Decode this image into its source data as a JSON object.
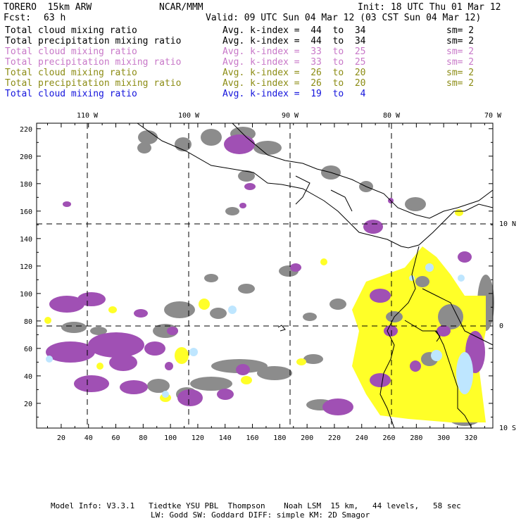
{
  "header": {
    "model": "TORERO  15km ARW",
    "center": "NCAR/MMM",
    "init": "Init: 18 UTC Thu 01 Mar 12",
    "fcst_label": "Fcst:",
    "fcst_value": "63 h",
    "valid": "Valid: 09 UTC Sun 04 Mar 12 (03 CST Sun 04 Mar 12)"
  },
  "legend_rows": [
    {
      "field": "Total cloud mixing ratio",
      "k": "Avg. k-index =  44  to  34",
      "sm": "sm= 2",
      "color": "#000000"
    },
    {
      "field": "Total precipitation mixing ratio",
      "k": "Avg. k-index =  44  to  34",
      "sm": "sm= 2",
      "color": "#000000"
    },
    {
      "field": "Total cloud mixing ratio",
      "k": "Avg. k-index =  33  to  25",
      "sm": "sm= 2",
      "color": "#c878c8"
    },
    {
      "field": "Total precipitation mixing ratio",
      "k": "Avg. k-index =  33  to  25",
      "sm": "sm= 2",
      "color": "#c878c8"
    },
    {
      "field": "Total cloud mixing ratio",
      "k": "Avg. k-index =  26  to  20",
      "sm": "sm= 2",
      "color": "#8c8c14"
    },
    {
      "field": "Total precipitation mixing ratio",
      "k": "Avg. k-index =  26  to  20",
      "sm": "sm= 2",
      "color": "#8c8c14"
    },
    {
      "field": "Total cloud mixing ratio",
      "k": "Avg. k-index =  19  to   4",
      "sm": "",
      "color": "#1414dc"
    }
  ],
  "map": {
    "lon_labels": [
      "110 W",
      "100 W",
      "90 W",
      "80 W",
      "70 W"
    ],
    "lat_labels": [
      "10 N",
      "0",
      "10 S"
    ],
    "x_ticks": [
      "20",
      "40",
      "60",
      "80",
      "100",
      "120",
      "140",
      "160",
      "180",
      "200",
      "220",
      "240",
      "260",
      "280",
      "300",
      "320"
    ],
    "y_ticks": [
      "20",
      "40",
      "60",
      "80",
      "100",
      "120",
      "140",
      "160",
      "180",
      "200",
      "220"
    ],
    "colors": {
      "gray": "#8c8c8c",
      "purple": "#a050b4",
      "yellow": "#ffff28",
      "cyan": "#bee6ff"
    }
  },
  "footer": {
    "line1": "Model Info: V3.3.1   Tiedtke YSU PBL  Thompson    Noah LSM  15 km,   44 levels,   58 sec",
    "line2": "LW: Godd SW: Goddard DIFF: simple KM: 2D Smagor"
  }
}
